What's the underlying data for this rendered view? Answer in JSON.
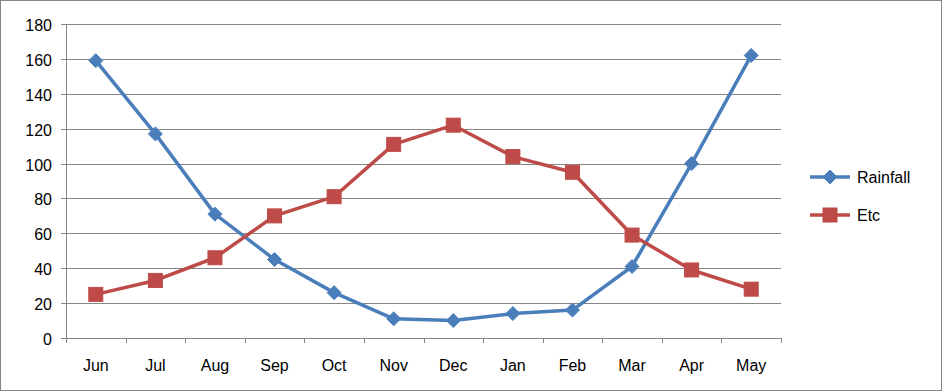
{
  "chart_data": {
    "type": "line",
    "categories": [
      "Jun",
      "Jul",
      "Aug",
      "Sep",
      "Oct",
      "Nov",
      "Dec",
      "Jan",
      "Feb",
      "Mar",
      "Apr",
      "May"
    ],
    "series": [
      {
        "name": "Rainfall",
        "color": "#4a7ebb",
        "marker": "diamond",
        "values": [
          159,
          117,
          71,
          45,
          26,
          11,
          10,
          14,
          16,
          41,
          100,
          162
        ]
      },
      {
        "name": "Etc",
        "color": "#be4b48",
        "marker": "square",
        "values": [
          25,
          33,
          46,
          70,
          81,
          111,
          122,
          104,
          95,
          59,
          39,
          28
        ]
      }
    ],
    "ylim": [
      0,
      180
    ],
    "yticks": [
      0,
      20,
      40,
      60,
      80,
      100,
      120,
      140,
      160,
      180
    ],
    "grid": true,
    "legend": "right"
  }
}
